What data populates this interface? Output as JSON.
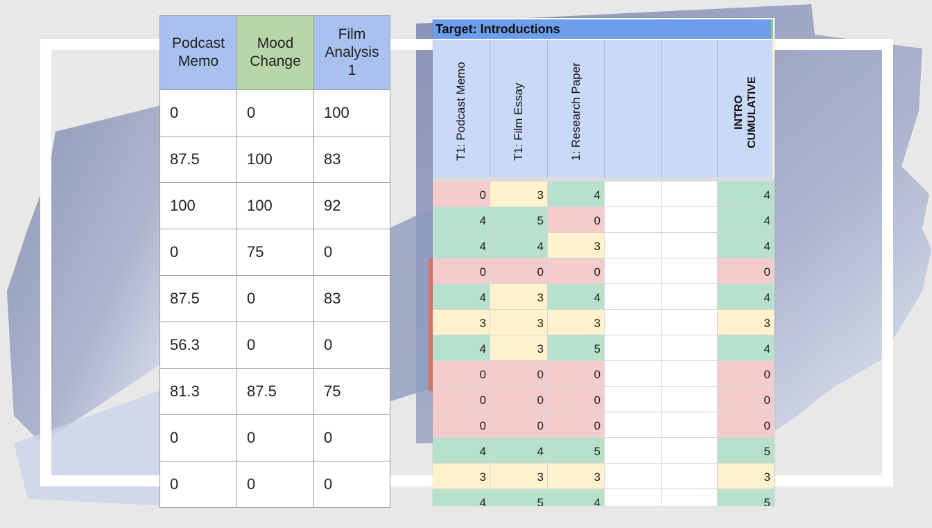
{
  "left_table": {
    "headers": [
      "Podcast\nMemo",
      "Mood\nChange",
      "Film\nAnalysis\n1"
    ],
    "rows": [
      [
        "0",
        "0",
        "100"
      ],
      [
        "87.5",
        "100",
        "83"
      ],
      [
        "100",
        "100",
        "92"
      ],
      [
        "0",
        "75",
        "0"
      ],
      [
        "87.5",
        "0",
        "83"
      ],
      [
        "56.3",
        "0",
        "0"
      ],
      [
        "81.3",
        "87.5",
        "75"
      ],
      [
        "0",
        "0",
        "0"
      ],
      [
        "0",
        "0",
        "0"
      ]
    ]
  },
  "sheet": {
    "title": "Target: Introductions",
    "headers": [
      "T1: Podcast Memo",
      "T1: Film Essay",
      "1: Research Paper",
      "",
      "",
      "INTRO\nCUMULATIVE"
    ],
    "rows": [
      [
        {
          "v": "0",
          "c": "r"
        },
        {
          "v": "3",
          "c": "y"
        },
        {
          "v": "4",
          "c": "g"
        },
        {
          "v": "",
          "c": "b"
        },
        {
          "v": "",
          "c": "b"
        },
        {
          "v": "4",
          "c": "g"
        }
      ],
      [
        {
          "v": "4",
          "c": "g"
        },
        {
          "v": "5",
          "c": "g"
        },
        {
          "v": "0",
          "c": "r"
        },
        {
          "v": "",
          "c": "b"
        },
        {
          "v": "",
          "c": "b"
        },
        {
          "v": "4",
          "c": "g"
        }
      ],
      [
        {
          "v": "4",
          "c": "g"
        },
        {
          "v": "4",
          "c": "g"
        },
        {
          "v": "3",
          "c": "y"
        },
        {
          "v": "",
          "c": "b"
        },
        {
          "v": "",
          "c": "b"
        },
        {
          "v": "4",
          "c": "g"
        }
      ],
      [
        {
          "v": "0",
          "c": "r"
        },
        {
          "v": "0",
          "c": "r"
        },
        {
          "v": "0",
          "c": "r"
        },
        {
          "v": "",
          "c": "b"
        },
        {
          "v": "",
          "c": "b"
        },
        {
          "v": "0",
          "c": "r"
        }
      ],
      [
        {
          "v": "4",
          "c": "g"
        },
        {
          "v": "3",
          "c": "y"
        },
        {
          "v": "4",
          "c": "g"
        },
        {
          "v": "",
          "c": "b"
        },
        {
          "v": "",
          "c": "b"
        },
        {
          "v": "4",
          "c": "g"
        }
      ],
      [
        {
          "v": "3",
          "c": "y"
        },
        {
          "v": "3",
          "c": "y"
        },
        {
          "v": "3",
          "c": "y"
        },
        {
          "v": "",
          "c": "b"
        },
        {
          "v": "",
          "c": "b"
        },
        {
          "v": "3",
          "c": "y"
        }
      ],
      [
        {
          "v": "4",
          "c": "g"
        },
        {
          "v": "3",
          "c": "y"
        },
        {
          "v": "5",
          "c": "g"
        },
        {
          "v": "",
          "c": "b"
        },
        {
          "v": "",
          "c": "b"
        },
        {
          "v": "4",
          "c": "g"
        }
      ],
      [
        {
          "v": "0",
          "c": "r"
        },
        {
          "v": "0",
          "c": "r"
        },
        {
          "v": "0",
          "c": "r"
        },
        {
          "v": "",
          "c": "b"
        },
        {
          "v": "",
          "c": "b"
        },
        {
          "v": "0",
          "c": "r"
        }
      ],
      [
        {
          "v": "0",
          "c": "r"
        },
        {
          "v": "0",
          "c": "r"
        },
        {
          "v": "0",
          "c": "r"
        },
        {
          "v": "",
          "c": "b"
        },
        {
          "v": "",
          "c": "b"
        },
        {
          "v": "0",
          "c": "r"
        }
      ],
      [
        {
          "v": "0",
          "c": "r"
        },
        {
          "v": "0",
          "c": "r"
        },
        {
          "v": "0",
          "c": "r"
        },
        {
          "v": "",
          "c": "b"
        },
        {
          "v": "",
          "c": "b"
        },
        {
          "v": "0",
          "c": "r"
        }
      ],
      [
        {
          "v": "4",
          "c": "g"
        },
        {
          "v": "4",
          "c": "g"
        },
        {
          "v": "5",
          "c": "g"
        },
        {
          "v": "",
          "c": "b"
        },
        {
          "v": "",
          "c": "b"
        },
        {
          "v": "5",
          "c": "g"
        }
      ],
      [
        {
          "v": "3",
          "c": "y"
        },
        {
          "v": "3",
          "c": "y"
        },
        {
          "v": "3",
          "c": "y"
        },
        {
          "v": "",
          "c": "b"
        },
        {
          "v": "",
          "c": "b"
        },
        {
          "v": "3",
          "c": "y"
        }
      ],
      [
        {
          "v": "4",
          "c": "g"
        },
        {
          "v": "5",
          "c": "g"
        },
        {
          "v": "4",
          "c": "g"
        },
        {
          "v": "",
          "c": "b"
        },
        {
          "v": "",
          "c": "b"
        },
        {
          "v": "5",
          "c": "g"
        }
      ],
      [
        {
          "v": "",
          "c": "g"
        },
        {
          "v": "",
          "c": "g"
        },
        {
          "v": "",
          "c": "g"
        },
        {
          "v": "",
          "c": "b"
        },
        {
          "v": "",
          "c": "b"
        },
        {
          "v": "",
          "c": "g"
        }
      ]
    ]
  },
  "colors": {
    "red": "#f4cccc",
    "yellow": "#fff2cc",
    "green": "#b7e1cd",
    "header_blue": "#a8c1ee",
    "header_green": "#b8d7a8",
    "brush": "#8e9bbf"
  }
}
